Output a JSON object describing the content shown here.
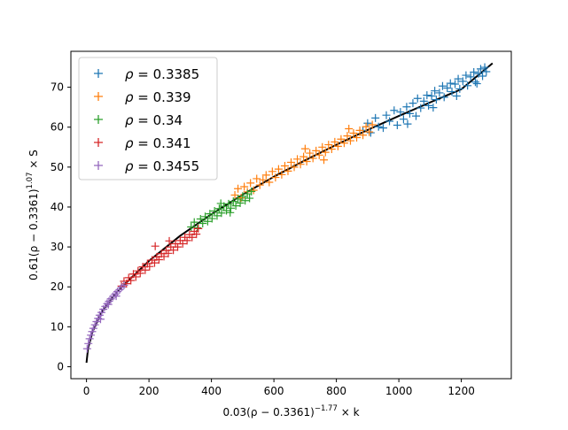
{
  "chart_data": {
    "type": "scatter",
    "title": "",
    "xlabel": "0.03(ρ − 0.3361)^{−1.77} × k",
    "xlabel_parts": {
      "base": "0.03(ρ − 0.3361)",
      "exp": "−1.77",
      "tail": " × k"
    },
    "ylabel": "0.61(ρ − 0.3361)^{1.07} × S",
    "ylabel_parts": {
      "base": "0.61(ρ − 0.3361)",
      "exp": "1.07",
      "tail": " × S"
    },
    "xlim": [
      -50,
      1360
    ],
    "ylim": [
      -3,
      79
    ],
    "xticks": [
      0,
      200,
      400,
      600,
      800,
      1000,
      1200
    ],
    "yticks": [
      0,
      10,
      20,
      30,
      40,
      50,
      60,
      70
    ],
    "grid": false,
    "legend_position": "top-left",
    "marker": "+",
    "series": [
      {
        "name": "ρ = 0.3385",
        "color": "#1f77b4",
        "x_range": [
          880,
          1280
        ],
        "points": [
          [
            885,
            59.2
          ],
          [
            900,
            61.0
          ],
          [
            910,
            58.6
          ],
          [
            925,
            62.3
          ],
          [
            935,
            60.1
          ],
          [
            950,
            59.8
          ],
          [
            960,
            63.0
          ],
          [
            970,
            61.5
          ],
          [
            985,
            64.2
          ],
          [
            995,
            60.5
          ],
          [
            1005,
            63.8
          ],
          [
            1015,
            62.0
          ],
          [
            1025,
            65.1
          ],
          [
            1035,
            63.4
          ],
          [
            1045,
            66.0
          ],
          [
            1055,
            62.8
          ],
          [
            1060,
            67.2
          ],
          [
            1070,
            64.8
          ],
          [
            1080,
            66.5
          ],
          [
            1090,
            68.0
          ],
          [
            1095,
            65.4
          ],
          [
            1105,
            67.8
          ],
          [
            1115,
            69.1
          ],
          [
            1120,
            66.9
          ],
          [
            1130,
            68.6
          ],
          [
            1140,
            70.3
          ],
          [
            1145,
            67.5
          ],
          [
            1155,
            69.8
          ],
          [
            1165,
            71.0
          ],
          [
            1170,
            68.9
          ],
          [
            1180,
            70.8
          ],
          [
            1190,
            72.1
          ],
          [
            1195,
            69.6
          ],
          [
            1205,
            71.5
          ],
          [
            1215,
            73.0
          ],
          [
            1220,
            70.4
          ],
          [
            1230,
            72.6
          ],
          [
            1240,
            73.8
          ],
          [
            1245,
            71.3
          ],
          [
            1255,
            73.4
          ],
          [
            1262,
            74.6
          ],
          [
            1268,
            72.8
          ],
          [
            1275,
            75.0
          ],
          [
            1280,
            73.9
          ],
          [
            1028,
            60.8
          ],
          [
            1110,
            64.9
          ],
          [
            1185,
            67.8
          ],
          [
            1250,
            70.9
          ]
        ]
      },
      {
        "name": "ρ = 0.339",
        "color": "#ff7f0e",
        "x_range": [
          470,
          920
        ],
        "points": [
          [
            475,
            43.0
          ],
          [
            485,
            44.6
          ],
          [
            495,
            42.3
          ],
          [
            505,
            45.1
          ],
          [
            515,
            43.8
          ],
          [
            525,
            46.0
          ],
          [
            535,
            44.2
          ],
          [
            545,
            47.1
          ],
          [
            555,
            45.5
          ],
          [
            565,
            46.8
          ],
          [
            575,
            48.0
          ],
          [
            585,
            46.2
          ],
          [
            595,
            48.9
          ],
          [
            605,
            47.4
          ],
          [
            615,
            49.5
          ],
          [
            625,
            48.1
          ],
          [
            635,
            50.3
          ],
          [
            645,
            49.0
          ],
          [
            655,
            51.2
          ],
          [
            665,
            50.0
          ],
          [
            675,
            52.0
          ],
          [
            685,
            50.7
          ],
          [
            695,
            52.6
          ],
          [
            705,
            51.4
          ],
          [
            715,
            53.5
          ],
          [
            725,
            52.2
          ],
          [
            735,
            54.1
          ],
          [
            745,
            53.0
          ],
          [
            755,
            55.0
          ],
          [
            765,
            53.7
          ],
          [
            775,
            55.6
          ],
          [
            785,
            54.5
          ],
          [
            795,
            56.3
          ],
          [
            805,
            55.2
          ],
          [
            815,
            57.0
          ],
          [
            825,
            56.0
          ],
          [
            835,
            57.8
          ],
          [
            845,
            56.6
          ],
          [
            855,
            58.5
          ],
          [
            865,
            57.4
          ],
          [
            875,
            59.2
          ],
          [
            885,
            58.0
          ],
          [
            895,
            60.1
          ],
          [
            905,
            58.8
          ],
          [
            915,
            60.6
          ],
          [
            700,
            54.6
          ],
          [
            760,
            51.8
          ],
          [
            840,
            59.6
          ]
        ]
      },
      {
        "name": "ρ = 0.34",
        "color": "#2ca02c",
        "x_range": [
          330,
          530
        ],
        "points": [
          [
            335,
            35.0
          ],
          [
            345,
            36.2
          ],
          [
            355,
            34.8
          ],
          [
            365,
            37.0
          ],
          [
            372,
            35.9
          ],
          [
            380,
            37.6
          ],
          [
            388,
            36.4
          ],
          [
            395,
            38.3
          ],
          [
            402,
            37.1
          ],
          [
            410,
            39.0
          ],
          [
            418,
            37.8
          ],
          [
            425,
            39.6
          ],
          [
            432,
            38.5
          ],
          [
            440,
            40.2
          ],
          [
            448,
            39.1
          ],
          [
            455,
            40.8
          ],
          [
            462,
            39.7
          ],
          [
            470,
            41.4
          ],
          [
            478,
            40.3
          ],
          [
            485,
            42.0
          ],
          [
            492,
            41.0
          ],
          [
            500,
            42.7
          ],
          [
            508,
            41.6
          ],
          [
            515,
            43.3
          ],
          [
            522,
            42.2
          ],
          [
            528,
            43.9
          ],
          [
            430,
            40.9
          ],
          [
            460,
            38.6
          ]
        ]
      },
      {
        "name": "ρ = 0.341",
        "color": "#d62728",
        "x_range": [
          110,
          360
        ],
        "points": [
          [
            112,
            20.2
          ],
          [
            120,
            21.4
          ],
          [
            128,
            20.8
          ],
          [
            135,
            22.3
          ],
          [
            142,
            21.6
          ],
          [
            150,
            23.2
          ],
          [
            158,
            22.5
          ],
          [
            165,
            24.0
          ],
          [
            172,
            23.4
          ],
          [
            180,
            25.0
          ],
          [
            188,
            24.2
          ],
          [
            195,
            25.8
          ],
          [
            202,
            25.1
          ],
          [
            210,
            26.7
          ],
          [
            218,
            26.0
          ],
          [
            225,
            27.5
          ],
          [
            232,
            26.8
          ],
          [
            240,
            28.3
          ],
          [
            248,
            27.6
          ],
          [
            255,
            29.1
          ],
          [
            262,
            28.4
          ],
          [
            270,
            30.0
          ],
          [
            278,
            29.2
          ],
          [
            285,
            30.8
          ],
          [
            292,
            30.0
          ],
          [
            300,
            31.6
          ],
          [
            308,
            30.8
          ],
          [
            315,
            32.4
          ],
          [
            322,
            31.6
          ],
          [
            330,
            33.1
          ],
          [
            338,
            32.4
          ],
          [
            345,
            33.9
          ],
          [
            352,
            33.2
          ],
          [
            358,
            34.6
          ],
          [
            220,
            30.2
          ],
          [
            265,
            31.5
          ]
        ]
      },
      {
        "name": "ρ = 0.3455",
        "color": "#9467bd",
        "x_range": [
          0,
          125
        ],
        "points": [
          [
            2,
            4.5
          ],
          [
            6,
            5.8
          ],
          [
            10,
            7.0
          ],
          [
            14,
            7.9
          ],
          [
            18,
            8.8
          ],
          [
            22,
            9.6
          ],
          [
            27,
            10.5
          ],
          [
            32,
            11.3
          ],
          [
            37,
            12.1
          ],
          [
            42,
            12.9
          ],
          [
            48,
            13.6
          ],
          [
            54,
            14.4
          ],
          [
            60,
            15.1
          ],
          [
            66,
            15.8
          ],
          [
            72,
            16.4
          ],
          [
            78,
            17.0
          ],
          [
            85,
            17.6
          ],
          [
            92,
            18.2
          ],
          [
            99,
            18.8
          ],
          [
            106,
            19.3
          ],
          [
            113,
            19.9
          ],
          [
            120,
            20.4
          ],
          [
            45,
            11.9
          ],
          [
            70,
            15.6
          ],
          [
            95,
            17.7
          ]
        ]
      }
    ],
    "fit_curve": {
      "color": "#000000",
      "x_start": 0,
      "x_end": 1300,
      "formula_points": [
        [
          0,
          1.0
        ],
        [
          5,
          4.6
        ],
        [
          20,
          8.9
        ],
        [
          50,
          13.8
        ],
        [
          100,
          19.0
        ],
        [
          200,
          26.5
        ],
        [
          300,
          32.8
        ],
        [
          400,
          38.2
        ],
        [
          500,
          43.1
        ],
        [
          600,
          47.6
        ],
        [
          700,
          51.7
        ],
        [
          800,
          55.6
        ],
        [
          900,
          59.3
        ],
        [
          1000,
          62.8
        ],
        [
          1100,
          66.2
        ],
        [
          1200,
          69.5
        ],
        [
          1300,
          76.0
        ]
      ]
    }
  }
}
